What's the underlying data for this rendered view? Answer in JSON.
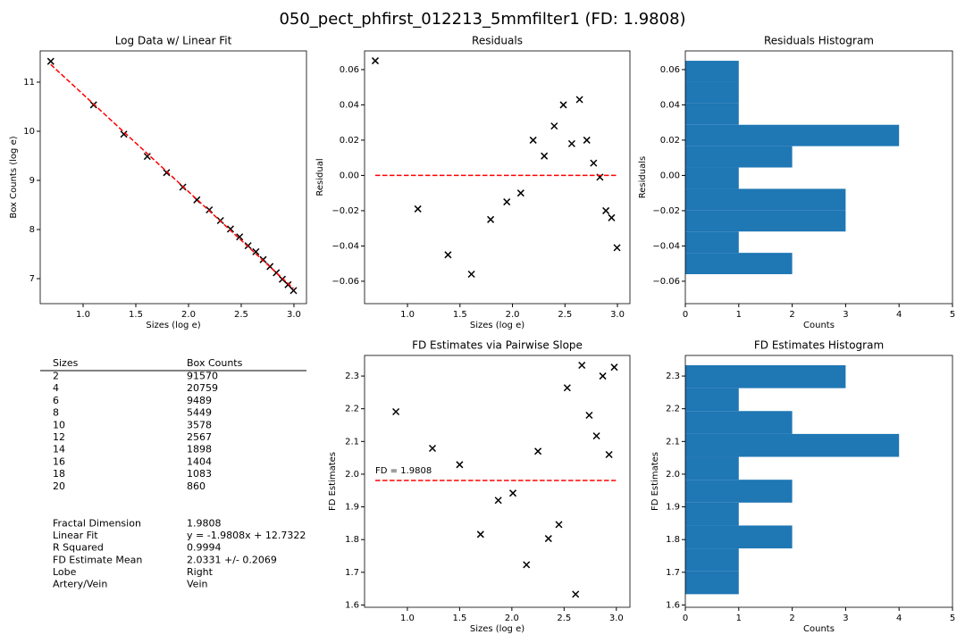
{
  "title": "050_pect_phfirst_012213_5mmfilter1 (FD: 1.9808)",
  "chart_data": [
    {
      "type": "scatter",
      "title": "Log Data w/ Linear Fit",
      "x_label": "Sizes (log e)",
      "y_label": "Box Counts (log e)",
      "xlim": [
        0.593,
        3.119
      ],
      "ylim": [
        6.491,
        11.636
      ],
      "xticks": [
        {
          "value": 1,
          "label": "1.0"
        },
        {
          "value": 1.5,
          "label": "1.5"
        },
        {
          "value": 2,
          "label": "2.0"
        },
        {
          "value": 2.5,
          "label": "2.5"
        },
        {
          "value": 3,
          "label": "3.0"
        }
      ],
      "yticks": [
        7,
        8,
        9,
        10,
        11
      ],
      "series": [
        {
          "color": "#000000",
          "marker": "x",
          "x": [
            0.693,
            1.099,
            1.386,
            1.609,
            1.792,
            1.946,
            2.079,
            2.197,
            2.303,
            2.398,
            2.485,
            2.565,
            2.639,
            2.708,
            2.773,
            2.833,
            2.89,
            2.944,
            2.996
          ],
          "values": [
            11.424,
            10.537,
            9.941,
            9.488,
            9.158,
            8.863,
            8.603,
            8.4,
            8.182,
            8.01,
            7.85,
            7.67,
            7.548,
            7.388,
            7.247,
            7.119,
            6.987,
            6.876,
            6.757
          ]
        },
        {
          "color": "#ff0000",
          "linestyle": "dashed",
          "x": [
            0.693,
            2.996
          ],
          "values": [
            11.359,
            6.798
          ]
        }
      ]
    },
    {
      "type": "scatter",
      "title": "Residuals",
      "x_label": "Sizes (log e)",
      "y_label": "Residual",
      "xlim": [
        0.591,
        3.119
      ],
      "ylim": [
        -0.0727,
        0.0706
      ],
      "xticks": [
        {
          "value": 1,
          "label": "1.0"
        },
        {
          "value": 1.5,
          "label": "1.5"
        },
        {
          "value": 2,
          "label": "2.0"
        },
        {
          "value": 2.5,
          "label": "2.5"
        },
        {
          "value": 3,
          "label": "3.0"
        }
      ],
      "yticks": [
        {
          "value": -0.06,
          "label": "−0.06"
        },
        {
          "value": -0.04,
          "label": "−0.04"
        },
        {
          "value": -0.02,
          "label": "−0.02"
        },
        {
          "value": 0,
          "label": "0.00"
        },
        {
          "value": 0.02,
          "label": "0.02"
        },
        {
          "value": 0.04,
          "label": "0.04"
        },
        {
          "value": 0.06,
          "label": "0.06"
        }
      ],
      "series": [
        {
          "color": "#000000",
          "marker": "x",
          "x": [
            0.693,
            1.099,
            1.386,
            1.609,
            1.792,
            1.946,
            2.079,
            2.197,
            2.303,
            2.398,
            2.485,
            2.565,
            2.639,
            2.708,
            2.773,
            2.833,
            2.89,
            2.944,
            2.996
          ],
          "values": [
            0.065,
            -0.019,
            -0.045,
            -0.056,
            -0.025,
            -0.015,
            -0.01,
            0.02,
            0.011,
            0.028,
            0.04,
            0.018,
            0.043,
            0.02,
            0.007,
            -0.001,
            -0.02,
            -0.024,
            -0.041
          ]
        },
        {
          "color": "#ff0000",
          "linestyle": "dashed",
          "x": [
            0.693,
            2.996
          ],
          "values": [
            0,
            0
          ]
        }
      ]
    },
    {
      "type": "histogram",
      "orientation": "horizontal",
      "title": "Residuals Histogram",
      "x_label": "Counts",
      "y_label": "Residuals",
      "color": "#1f77b4",
      "xlim": [
        0,
        5
      ],
      "ylim": [
        -0.0727,
        0.0706
      ],
      "xticks": [
        0,
        1,
        2,
        3,
        4,
        5
      ],
      "yticks": [
        {
          "value": -0.06,
          "label": "−0.06"
        },
        {
          "value": -0.04,
          "label": "−0.04"
        },
        {
          "value": -0.02,
          "label": "−0.02"
        },
        {
          "value": 0,
          "label": "0.00"
        },
        {
          "value": 0.02,
          "label": "0.02"
        },
        {
          "value": 0.04,
          "label": "0.04"
        },
        {
          "value": 0.06,
          "label": "0.06"
        }
      ],
      "bins": [
        -0.056,
        -0.0439,
        -0.0318,
        -0.0197,
        -0.0076,
        0.0045,
        0.0166,
        0.0287,
        0.0408,
        0.0529,
        0.065
      ],
      "values": [
        2,
        1,
        3,
        3,
        1,
        2,
        4,
        1,
        1,
        1
      ]
    },
    {
      "type": "scatter",
      "title": "FD Estimates via Pairwise Slope",
      "x_label": "Sizes (log e)",
      "y_label": "FD Estimates",
      "annotation": "FD = 1.9808",
      "xlim": [
        0.59,
        3.13
      ],
      "ylim": [
        1.593,
        2.363
      ],
      "xticks": [
        {
          "value": 1,
          "label": "1.0"
        },
        {
          "value": 1.5,
          "label": "1.5"
        },
        {
          "value": 2,
          "label": "2.0"
        },
        {
          "value": 2.5,
          "label": "2.5"
        },
        {
          "value": 3,
          "label": "3.0"
        }
      ],
      "yticks": [
        1.6,
        1.7,
        1.8,
        1.9,
        {
          "value": 2,
          "label": "2.0"
        },
        2.1,
        2.2,
        2.3
      ],
      "series": [
        {
          "color": "#000000",
          "marker": "x",
          "x": [
            0.89,
            1.24,
            1.5,
            1.7,
            1.87,
            2.01,
            2.14,
            2.25,
            2.35,
            2.45,
            2.53,
            2.61,
            2.67,
            2.74,
            2.81,
            2.87,
            2.93,
            2.98
          ],
          "values": [
            2.191,
            2.079,
            2.029,
            1.816,
            1.92,
            1.942,
            1.723,
            2.07,
            1.803,
            1.846,
            2.264,
            1.633,
            2.333,
            2.18,
            2.117,
            2.3,
            2.06,
            2.327
          ]
        },
        {
          "color": "#ff0000",
          "linestyle": "dashed",
          "x": [
            0.693,
            2.996
          ],
          "values": [
            1.9808,
            1.9808
          ]
        }
      ]
    },
    {
      "type": "histogram",
      "orientation": "horizontal",
      "title": "FD Estimates Histogram",
      "x_label": "Counts",
      "y_label": "FD Estimates",
      "color": "#1f77b4",
      "xlim": [
        0,
        5
      ],
      "ylim": [
        1.593,
        2.363
      ],
      "xticks": [
        0,
        1,
        2,
        3,
        4,
        5
      ],
      "yticks": [
        1.6,
        1.7,
        1.8,
        1.9,
        {
          "value": 2,
          "label": "2.0"
        },
        2.1,
        2.2,
        2.3
      ],
      "bins": [
        1.633,
        1.703,
        1.773,
        1.843,
        1.913,
        1.983,
        2.053,
        2.123,
        2.193,
        2.263,
        2.333
      ],
      "values": [
        1,
        1,
        2,
        1,
        2,
        1,
        4,
        2,
        1,
        3
      ]
    }
  ],
  "table": {
    "columns": [
      "Sizes",
      "Box Counts"
    ],
    "rows": [
      [
        2,
        91570
      ],
      [
        4,
        20759
      ],
      [
        6,
        9489
      ],
      [
        8,
        5449
      ],
      [
        10,
        3578
      ],
      [
        12,
        2567
      ],
      [
        14,
        1898
      ],
      [
        16,
        1404
      ],
      [
        18,
        1083
      ],
      [
        20,
        860
      ]
    ]
  },
  "stats": [
    [
      "Fractal Dimension",
      1.9808
    ],
    [
      "Linear Fit",
      "y = -1.9808x + 12.7322"
    ],
    [
      "R Squared",
      0.9994
    ],
    [
      "FD Estimate Mean",
      "2.0331 +/- 0.2069"
    ],
    [
      "Lobe",
      "Right"
    ],
    [
      "Artery/Vein",
      "Vein"
    ]
  ]
}
